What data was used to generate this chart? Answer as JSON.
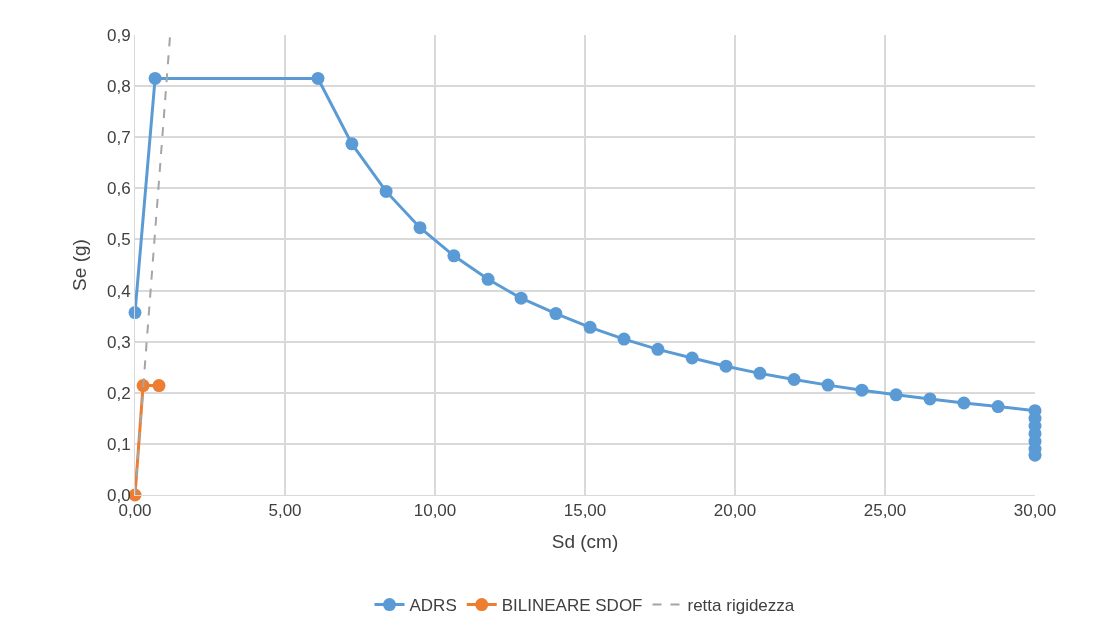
{
  "chart_data": {
    "type": "line",
    "xlabel": "Sd (cm)",
    "ylabel": "Se (g)",
    "xlim": [
      0,
      30
    ],
    "ylim": [
      0,
      0.9
    ],
    "xticks": [
      {
        "value": 0,
        "label": "0,00"
      },
      {
        "value": 5,
        "label": "5,00"
      },
      {
        "value": 10,
        "label": "10,00"
      },
      {
        "value": 15,
        "label": "15,00"
      },
      {
        "value": 20,
        "label": "20,00"
      },
      {
        "value": 25,
        "label": "25,00"
      },
      {
        "value": 30,
        "label": "30,00"
      }
    ],
    "yticks": [
      {
        "value": 0,
        "label": "0,0"
      },
      {
        "value": 0.1,
        "label": "0,1"
      },
      {
        "value": 0.2,
        "label": "0,2"
      },
      {
        "value": 0.3,
        "label": "0,3"
      },
      {
        "value": 0.4,
        "label": "0,4"
      },
      {
        "value": 0.5,
        "label": "0,5"
      },
      {
        "value": 0.6,
        "label": "0,6"
      },
      {
        "value": 0.7,
        "label": "0,7"
      },
      {
        "value": 0.8,
        "label": "0,8"
      },
      {
        "value": 0.9,
        "label": "0,9"
      }
    ],
    "grid": true,
    "legend": "bottom",
    "series": [
      {
        "name": "ADRS",
        "color": "#5b9bd5",
        "marker": "circle",
        "line_style": "solid",
        "x": [
          0,
          0.67,
          6.1,
          7.23,
          8.37,
          9.5,
          10.63,
          11.77,
          12.87,
          14.03,
          15.17,
          16.3,
          17.43,
          18.57,
          19.7,
          20.83,
          21.97,
          23.1,
          24.23,
          25.37,
          26.5,
          27.63,
          28.77,
          30,
          30,
          30,
          30,
          30,
          30,
          30
        ],
        "values": [
          0.357,
          0.815,
          0.815,
          0.687,
          0.594,
          0.523,
          0.468,
          0.422,
          0.385,
          0.355,
          0.328,
          0.305,
          0.285,
          0.268,
          0.252,
          0.238,
          0.226,
          0.215,
          0.205,
          0.196,
          0.188,
          0.18,
          0.173,
          0.165,
          0.15,
          0.135,
          0.12,
          0.105,
          0.09,
          0.078
        ]
      },
      {
        "name": "BILINEARE SDOF",
        "color": "#ed7d31",
        "marker": "circle",
        "line_style": "solid",
        "x": [
          0,
          0.27,
          0.8
        ],
        "values": [
          0,
          0.214,
          0.214
        ]
      },
      {
        "name": "retta rigidezza",
        "color": "#a5a5a5",
        "marker": "none",
        "line_style": "dashed",
        "x": [
          0,
          1.17
        ],
        "values": [
          0,
          0.9
        ]
      }
    ]
  }
}
